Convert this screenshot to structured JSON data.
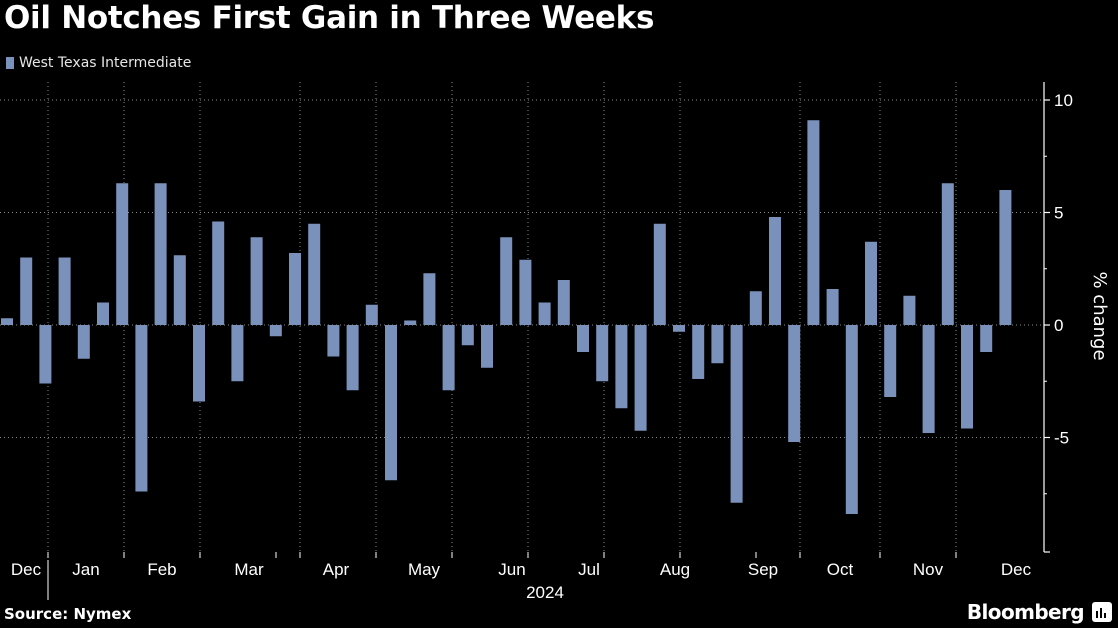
{
  "title": "Oil Notches First Gain in Three Weeks",
  "legend": {
    "label": "West Texas Intermediate"
  },
  "source": "Source: Nymex",
  "brand": "Bloomberg",
  "colors": {
    "bar": "#7a92bb",
    "background": "#000000",
    "grid": "#8a8a8a",
    "text": "#ffffff"
  },
  "chart_data": {
    "type": "bar",
    "series": [
      {
        "name": "West Texas Intermediate",
        "values": [
          0.3,
          3.0,
          -2.6,
          3.0,
          -1.5,
          1.0,
          6.3,
          -7.4,
          6.3,
          3.1,
          -3.4,
          4.6,
          -2.5,
          3.9,
          -0.5,
          3.2,
          4.5,
          -1.4,
          -2.9,
          0.9,
          -6.9,
          0.2,
          2.3,
          -2.9,
          -0.9,
          -1.9,
          3.9,
          2.9,
          1.0,
          2.0,
          -1.2,
          -2.5,
          -3.7,
          -4.7,
          4.5,
          -0.3,
          -2.4,
          -1.7,
          -7.9,
          1.5,
          4.8,
          -5.2,
          9.1,
          1.6,
          -8.4,
          3.7,
          -3.2,
          1.3,
          -4.8,
          6.3,
          -4.6,
          -1.2,
          6.0
        ]
      }
    ],
    "x_tick_labels": [
      "Dec",
      "Jan",
      "Feb",
      "Mar",
      "Apr",
      "May",
      "Jun",
      "Jul",
      "Aug",
      "Sep",
      "Oct",
      "Nov",
      "Dec"
    ],
    "x_year_label": "2024",
    "y_ticks": [
      10,
      5,
      0,
      -5
    ],
    "ylabel": "% change",
    "ylim": [
      -10,
      10
    ],
    "grid": true
  }
}
